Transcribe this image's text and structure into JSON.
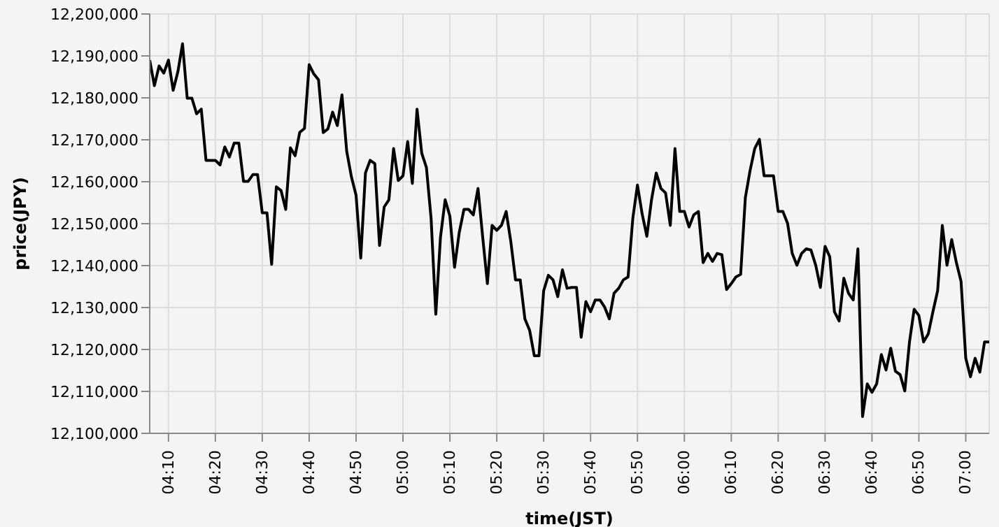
{
  "chart_data": {
    "type": "line",
    "xlabel": "time(JST)",
    "ylabel": "price(JPY)",
    "xlim": [
      4.1,
      7.0833
    ],
    "xticks": [
      {
        "value": 4.1667,
        "label": "04:10"
      },
      {
        "value": 4.3333,
        "label": "04:20"
      },
      {
        "value": 4.5,
        "label": "04:30"
      },
      {
        "value": 4.6667,
        "label": "04:40"
      },
      {
        "value": 4.8333,
        "label": "04:50"
      },
      {
        "value": 5,
        "label": "05:00"
      },
      {
        "value": 5.1667,
        "label": "05:10"
      },
      {
        "value": 5.3333,
        "label": "05:20"
      },
      {
        "value": 5.5,
        "label": "05:30"
      },
      {
        "value": 5.6667,
        "label": "05:40"
      },
      {
        "value": 5.8333,
        "label": "05:50"
      },
      {
        "value": 6,
        "label": "06:00"
      },
      {
        "value": 6.1667,
        "label": "06:10"
      },
      {
        "value": 6.3333,
        "label": "06:20"
      },
      {
        "value": 6.5,
        "label": "06:30"
      },
      {
        "value": 6.6667,
        "label": "06:40"
      },
      {
        "value": 6.8333,
        "label": "06:50"
      },
      {
        "value": 7,
        "label": "07:00"
      }
    ],
    "ylim": [
      12100000,
      12200000
    ],
    "yticks": [
      {
        "value": 12100000,
        "label": "12,100,000"
      },
      {
        "value": 12110000,
        "label": "12,110,000"
      },
      {
        "value": 12120000,
        "label": "12,120,000"
      },
      {
        "value": 12130000,
        "label": "12,130,000"
      },
      {
        "value": 12140000,
        "label": "12,140,000"
      },
      {
        "value": 12150000,
        "label": "12,150,000"
      },
      {
        "value": 12160000,
        "label": "12,160,000"
      },
      {
        "value": 12170000,
        "label": "12,170,000"
      },
      {
        "value": 12180000,
        "label": "12,180,000"
      },
      {
        "value": 12190000,
        "label": "12,190,000"
      },
      {
        "value": 12200000,
        "label": "12,200,000"
      }
    ],
    "grid": true,
    "marker": "none",
    "line_style": "solid",
    "x": [
      4.1,
      4.1167,
      4.1333,
      4.15,
      4.1667,
      4.1833,
      4.2,
      4.2167,
      4.2333,
      4.25,
      4.2667,
      4.2833,
      4.3,
      4.3167,
      4.3333,
      4.35,
      4.3667,
      4.3833,
      4.4,
      4.4167,
      4.4333,
      4.45,
      4.4667,
      4.4833,
      4.5,
      4.5167,
      4.5333,
      4.55,
      4.5667,
      4.5833,
      4.6,
      4.6167,
      4.6333,
      4.65,
      4.6667,
      4.6833,
      4.7,
      4.7167,
      4.7333,
      4.75,
      4.7667,
      4.7833,
      4.8,
      4.8167,
      4.8333,
      4.85,
      4.8667,
      4.8833,
      4.9,
      4.9167,
      4.9333,
      4.95,
      4.9667,
      4.9833,
      5,
      5.0167,
      5.0333,
      5.05,
      5.0667,
      5.0833,
      5.1,
      5.1167,
      5.1333,
      5.15,
      5.1667,
      5.1833,
      5.2,
      5.2167,
      5.2333,
      5.25,
      5.2667,
      5.2833,
      5.3,
      5.3167,
      5.3333,
      5.35,
      5.3667,
      5.3833,
      5.4,
      5.4167,
      5.4333,
      5.45,
      5.4667,
      5.4833,
      5.5,
      5.5167,
      5.5333,
      5.55,
      5.5667,
      5.5833,
      5.6,
      5.6167,
      5.6333,
      5.65,
      5.6667,
      5.6833,
      5.7,
      5.7167,
      5.7333,
      5.75,
      5.7667,
      5.7833,
      5.8,
      5.8167,
      5.8333,
      5.85,
      5.8667,
      5.8833,
      5.9,
      5.9167,
      5.9333,
      5.95,
      5.9667,
      5.9833,
      6,
      6.0167,
      6.0333,
      6.05,
      6.0667,
      6.0833,
      6.1,
      6.1167,
      6.1333,
      6.15,
      6.1667,
      6.1833,
      6.2,
      6.2167,
      6.2333,
      6.25,
      6.2667,
      6.2833,
      6.3,
      6.3167,
      6.3333,
      6.35,
      6.3667,
      6.3833,
      6.4,
      6.4167,
      6.4333,
      6.45,
      6.4667,
      6.4833,
      6.5,
      6.5167,
      6.5333,
      6.55,
      6.5667,
      6.5833,
      6.6,
      6.6167,
      6.6333,
      6.65,
      6.6667,
      6.6833,
      6.7,
      6.7167,
      6.7333,
      6.75,
      6.7667,
      6.7833,
      6.8,
      6.8167,
      6.8333,
      6.85,
      6.8667,
      6.8833,
      6.9,
      6.9167,
      6.9333,
      6.95,
      6.9667,
      6.9833,
      7,
      7.0167,
      7.0333,
      7.05,
      7.0667,
      7.0833
    ],
    "series": [
      {
        "color": "#000000",
        "values": [
          12189000,
          12182900,
          12187600,
          12185900,
          12189000,
          12181800,
          12186200,
          12192900,
          12179900,
          12179900,
          12176200,
          12177300,
          12165100,
          12165100,
          12165100,
          12164000,
          12168300,
          12165900,
          12169200,
          12169200,
          12160100,
          12160100,
          12161700,
          12161700,
          12152600,
          12152600,
          12140300,
          12158800,
          12157900,
          12153400,
          12168100,
          12166200,
          12171800,
          12172700,
          12187900,
          12185700,
          12184300,
          12171700,
          12172600,
          12176600,
          12173400,
          12180700,
          12167300,
          12161200,
          12156800,
          12141800,
          12162100,
          12165100,
          12164300,
          12144800,
          12154000,
          12155700,
          12167900,
          12160300,
          12161400,
          12169600,
          12159600,
          12177300,
          12166800,
          12163400,
          12151200,
          12128400,
          12146800,
          12155700,
          12151800,
          12139600,
          12147900,
          12153400,
          12153400,
          12152100,
          12158400,
          12146800,
          12135700,
          12149600,
          12148400,
          12149600,
          12152900,
          12145700,
          12136600,
          12136600,
          12127300,
          12124600,
          12118500,
          12118500,
          12134000,
          12137700,
          12136600,
          12132600,
          12139000,
          12134600,
          12134800,
          12134800,
          12122900,
          12131400,
          12129000,
          12131800,
          12131800,
          12130100,
          12127300,
          12133400,
          12134600,
          12136600,
          12137300,
          12151200,
          12159200,
          12152300,
          12147000,
          12155700,
          12162100,
          12158400,
          12157300,
          12149600,
          12167900,
          12152900,
          12152900,
          12149200,
          12152100,
          12152900,
          12140700,
          12142900,
          12141000,
          12142900,
          12142600,
          12134300,
          12135700,
          12137300,
          12137900,
          12156200,
          12162600,
          12167900,
          12170100,
          12161400,
          12161400,
          12161400,
          12152900,
          12152900,
          12150100,
          12142900,
          12140100,
          12142900,
          12144000,
          12143700,
          12140100,
          12134800,
          12144600,
          12142100,
          12129000,
          12126800,
          12137000,
          12133400,
          12131800,
          12144000,
          12104000,
          12111800,
          12109800,
          12111800,
          12118800,
          12115100,
          12120300,
          12114800,
          12114000,
          12110100,
          12121800,
          12129600,
          12128100,
          12121800,
          12123700,
          12129000,
          12134000,
          12149600,
          12140100,
          12146200,
          12140700,
          12136200,
          12117900,
          12113500,
          12117900,
          12114600,
          12121800,
          12121800
        ]
      }
    ]
  }
}
